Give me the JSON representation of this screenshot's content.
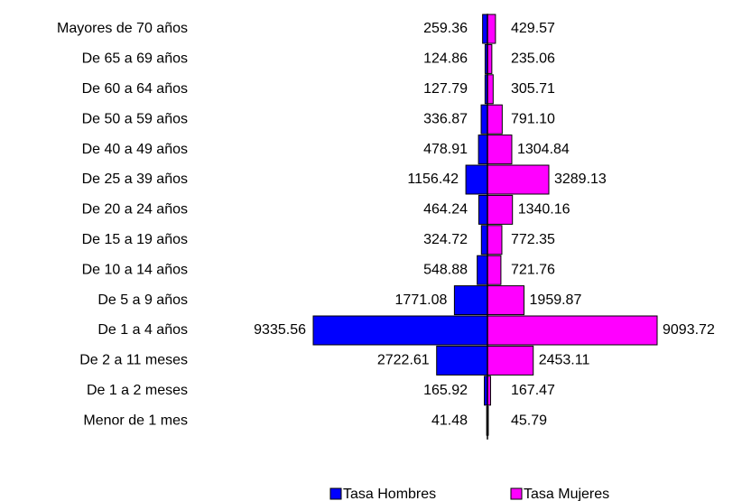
{
  "chart_data": {
    "type": "pyramid",
    "categories": [
      "Mayores de 70 años",
      "De 65 a 69 años",
      "De 60 a 64 años",
      "De 50 a 59 años",
      "De 40 a 49 años",
      "De 25 a 39 años",
      "De 20 a 24 años",
      "De 15 a 19 años",
      "De 10 a 14 años",
      "De 5 a 9 años",
      "De 1 a 4 años",
      "De 2 a 11 meses",
      "De 1 a 2 meses",
      "Menor de 1 mes"
    ],
    "series": [
      {
        "name": "Tasa Hombres",
        "color": "#0000ff",
        "side": "left",
        "values": [
          259.36,
          124.86,
          127.79,
          336.87,
          478.91,
          1156.42,
          464.24,
          324.72,
          548.88,
          1771.08,
          9335.56,
          2722.61,
          165.92,
          41.48
        ],
        "value_labels": [
          "259.36",
          "124.86",
          "127.79",
          "336.87",
          "478.91",
          "1156.42",
          "464.24",
          "324.72",
          "548.88",
          "1771.08",
          "9335.56",
          "2722.61",
          "165.92",
          "41.48"
        ]
      },
      {
        "name": "Tasa Mujeres",
        "color": "#ff00ff",
        "side": "right",
        "values": [
          429.57,
          235.06,
          305.71,
          791.1,
          1304.84,
          3289.13,
          1340.16,
          772.35,
          721.76,
          1959.87,
          9093.72,
          2453.11,
          167.47,
          45.79
        ],
        "value_labels": [
          "429.57",
          "235.06",
          "305.71",
          "791.10",
          "1304.84",
          "3289.13",
          "1340.16",
          "772.35",
          "721.76",
          "1959.87",
          "9093.72",
          "2453.11",
          "167.47",
          "45.79"
        ]
      }
    ]
  }
}
